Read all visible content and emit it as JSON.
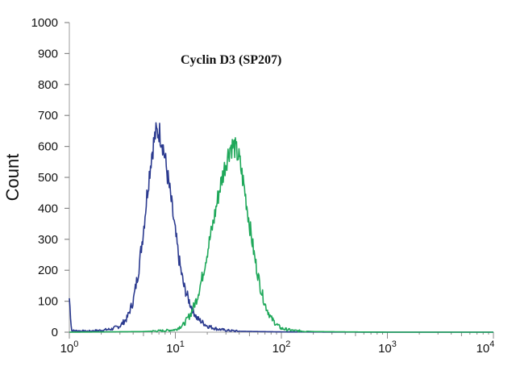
{
  "chart_data": {
    "type": "line",
    "title": "Cyclin D3 (SP207)",
    "ylabel": "Count",
    "xlabel": "",
    "x_scale": "log",
    "xlim": [
      1,
      10000
    ],
    "ylim": [
      0,
      1000
    ],
    "y_ticks": [
      "0",
      "100",
      "200",
      "300",
      "400",
      "500",
      "600",
      "700",
      "800",
      "900",
      "1000"
    ],
    "x_ticks": [
      {
        "value": 1,
        "base": "10",
        "exp": "0"
      },
      {
        "value": 10,
        "base": "10",
        "exp": "1"
      },
      {
        "value": 100,
        "base": "10",
        "exp": "2"
      },
      {
        "value": 1000,
        "base": "10",
        "exp": "3"
      },
      {
        "value": 10000,
        "base": "10",
        "exp": "4"
      }
    ],
    "grid": false,
    "series": [
      {
        "color": "#2b3a8f",
        "points": [
          [
            1.0,
            110
          ],
          [
            1.05,
            5
          ],
          [
            1.5,
            3
          ],
          [
            2.0,
            6
          ],
          [
            2.5,
            10
          ],
          [
            3.0,
            20
          ],
          [
            3.5,
            45
          ],
          [
            4.0,
            100
          ],
          [
            4.5,
            200
          ],
          [
            5.0,
            330
          ],
          [
            5.5,
            470
          ],
          [
            6.0,
            580
          ],
          [
            6.5,
            640
          ],
          [
            7.0,
            650
          ],
          [
            7.5,
            620
          ],
          [
            8.0,
            560
          ],
          [
            9.0,
            440
          ],
          [
            10.0,
            320
          ],
          [
            11.0,
            220
          ],
          [
            12.0,
            150
          ],
          [
            14.0,
            85
          ],
          [
            16.0,
            45
          ],
          [
            20.0,
            20
          ],
          [
            25.0,
            10
          ],
          [
            30.0,
            6
          ],
          [
            40.0,
            3
          ],
          [
            60.0,
            2
          ],
          [
            100.0,
            1
          ],
          [
            1000.0,
            0
          ],
          [
            10000.0,
            0
          ]
        ]
      },
      {
        "color": "#1fa85a",
        "points": [
          [
            1.0,
            0
          ],
          [
            5.0,
            2
          ],
          [
            8.0,
            5
          ],
          [
            10.0,
            8
          ],
          [
            12.0,
            25
          ],
          [
            14.0,
            60
          ],
          [
            16.0,
            110
          ],
          [
            18.0,
            180
          ],
          [
            20.0,
            260
          ],
          [
            23.0,
            360
          ],
          [
            26.0,
            460
          ],
          [
            30.0,
            550
          ],
          [
            33.0,
            600
          ],
          [
            36.0,
            600
          ],
          [
            40.0,
            560
          ],
          [
            45.0,
            460
          ],
          [
            50.0,
            350
          ],
          [
            56.0,
            240
          ],
          [
            63.0,
            150
          ],
          [
            70.0,
            90
          ],
          [
            80.0,
            45
          ],
          [
            90.0,
            25
          ],
          [
            100.0,
            12
          ],
          [
            130.0,
            5
          ],
          [
            200.0,
            2
          ],
          [
            400.0,
            1
          ],
          [
            1000.0,
            0
          ],
          [
            10000.0,
            0
          ]
        ]
      }
    ]
  }
}
